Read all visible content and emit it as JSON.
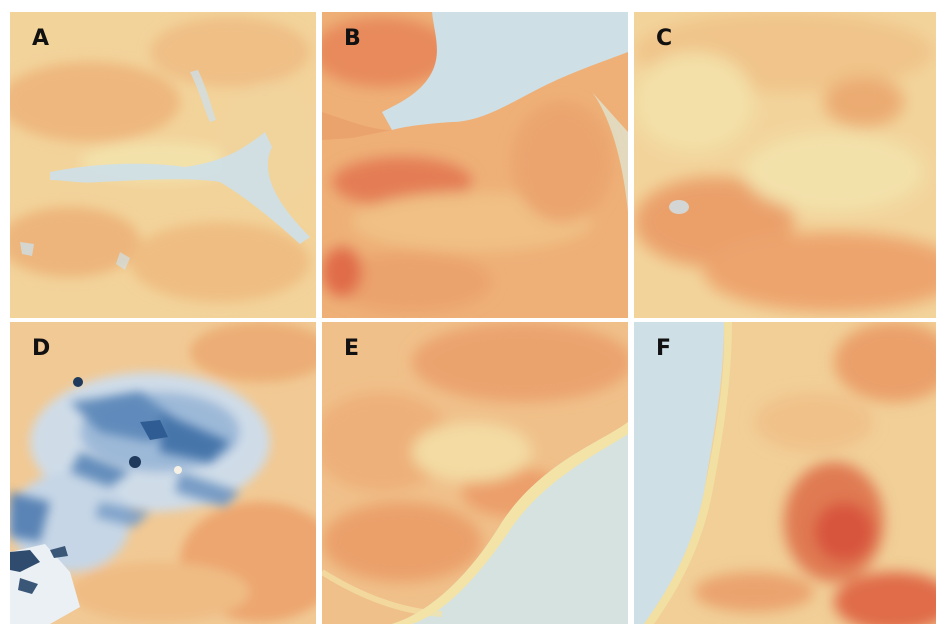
{
  "panels": [
    {
      "label": "A"
    },
    {
      "label": "B"
    },
    {
      "label": "C"
    },
    {
      "label": "D"
    },
    {
      "label": "E"
    },
    {
      "label": "F"
    }
  ],
  "colors": {
    "water": "#cfdfe6",
    "pale": "#f3e6b0",
    "light_orange": "#f3c98e",
    "orange": "#eeaa72",
    "deep_orange": "#e47a52",
    "red": "#d8523e",
    "blue": "#5a86b8",
    "dark_blue": "#2f5d93"
  }
}
